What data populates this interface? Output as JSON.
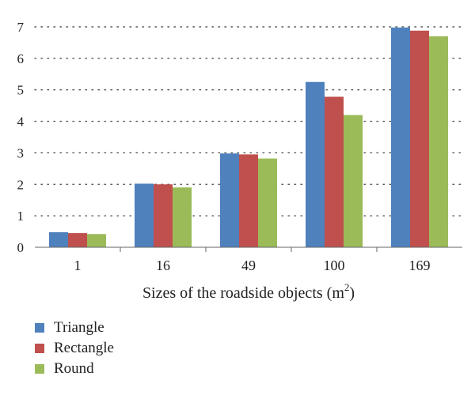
{
  "chart_data": {
    "type": "bar",
    "categories": [
      "1",
      "16",
      "49",
      "100",
      "169"
    ],
    "series": [
      {
        "name": "Triangle",
        "color": "#4F81BD",
        "values": [
          0.48,
          2.02,
          2.98,
          5.25,
          6.98
        ]
      },
      {
        "name": "Rectangle",
        "color": "#C0504D",
        "values": [
          0.45,
          2.0,
          2.95,
          4.78,
          6.88
        ]
      },
      {
        "name": "Round",
        "color": "#9BBB59",
        "values": [
          0.42,
          1.9,
          2.82,
          4.2,
          6.7
        ]
      }
    ],
    "yticks": [
      0,
      1,
      2,
      3,
      4,
      5,
      6,
      7
    ],
    "ylim": [
      0,
      7
    ],
    "xlabel": "Sizes of the roadside objects (m",
    "xlabel_sup": "2",
    "xlabel_close": ")",
    "ylabel": "",
    "title": "",
    "grid": "horizontal dotted",
    "legend_position": "bottom-left"
  }
}
